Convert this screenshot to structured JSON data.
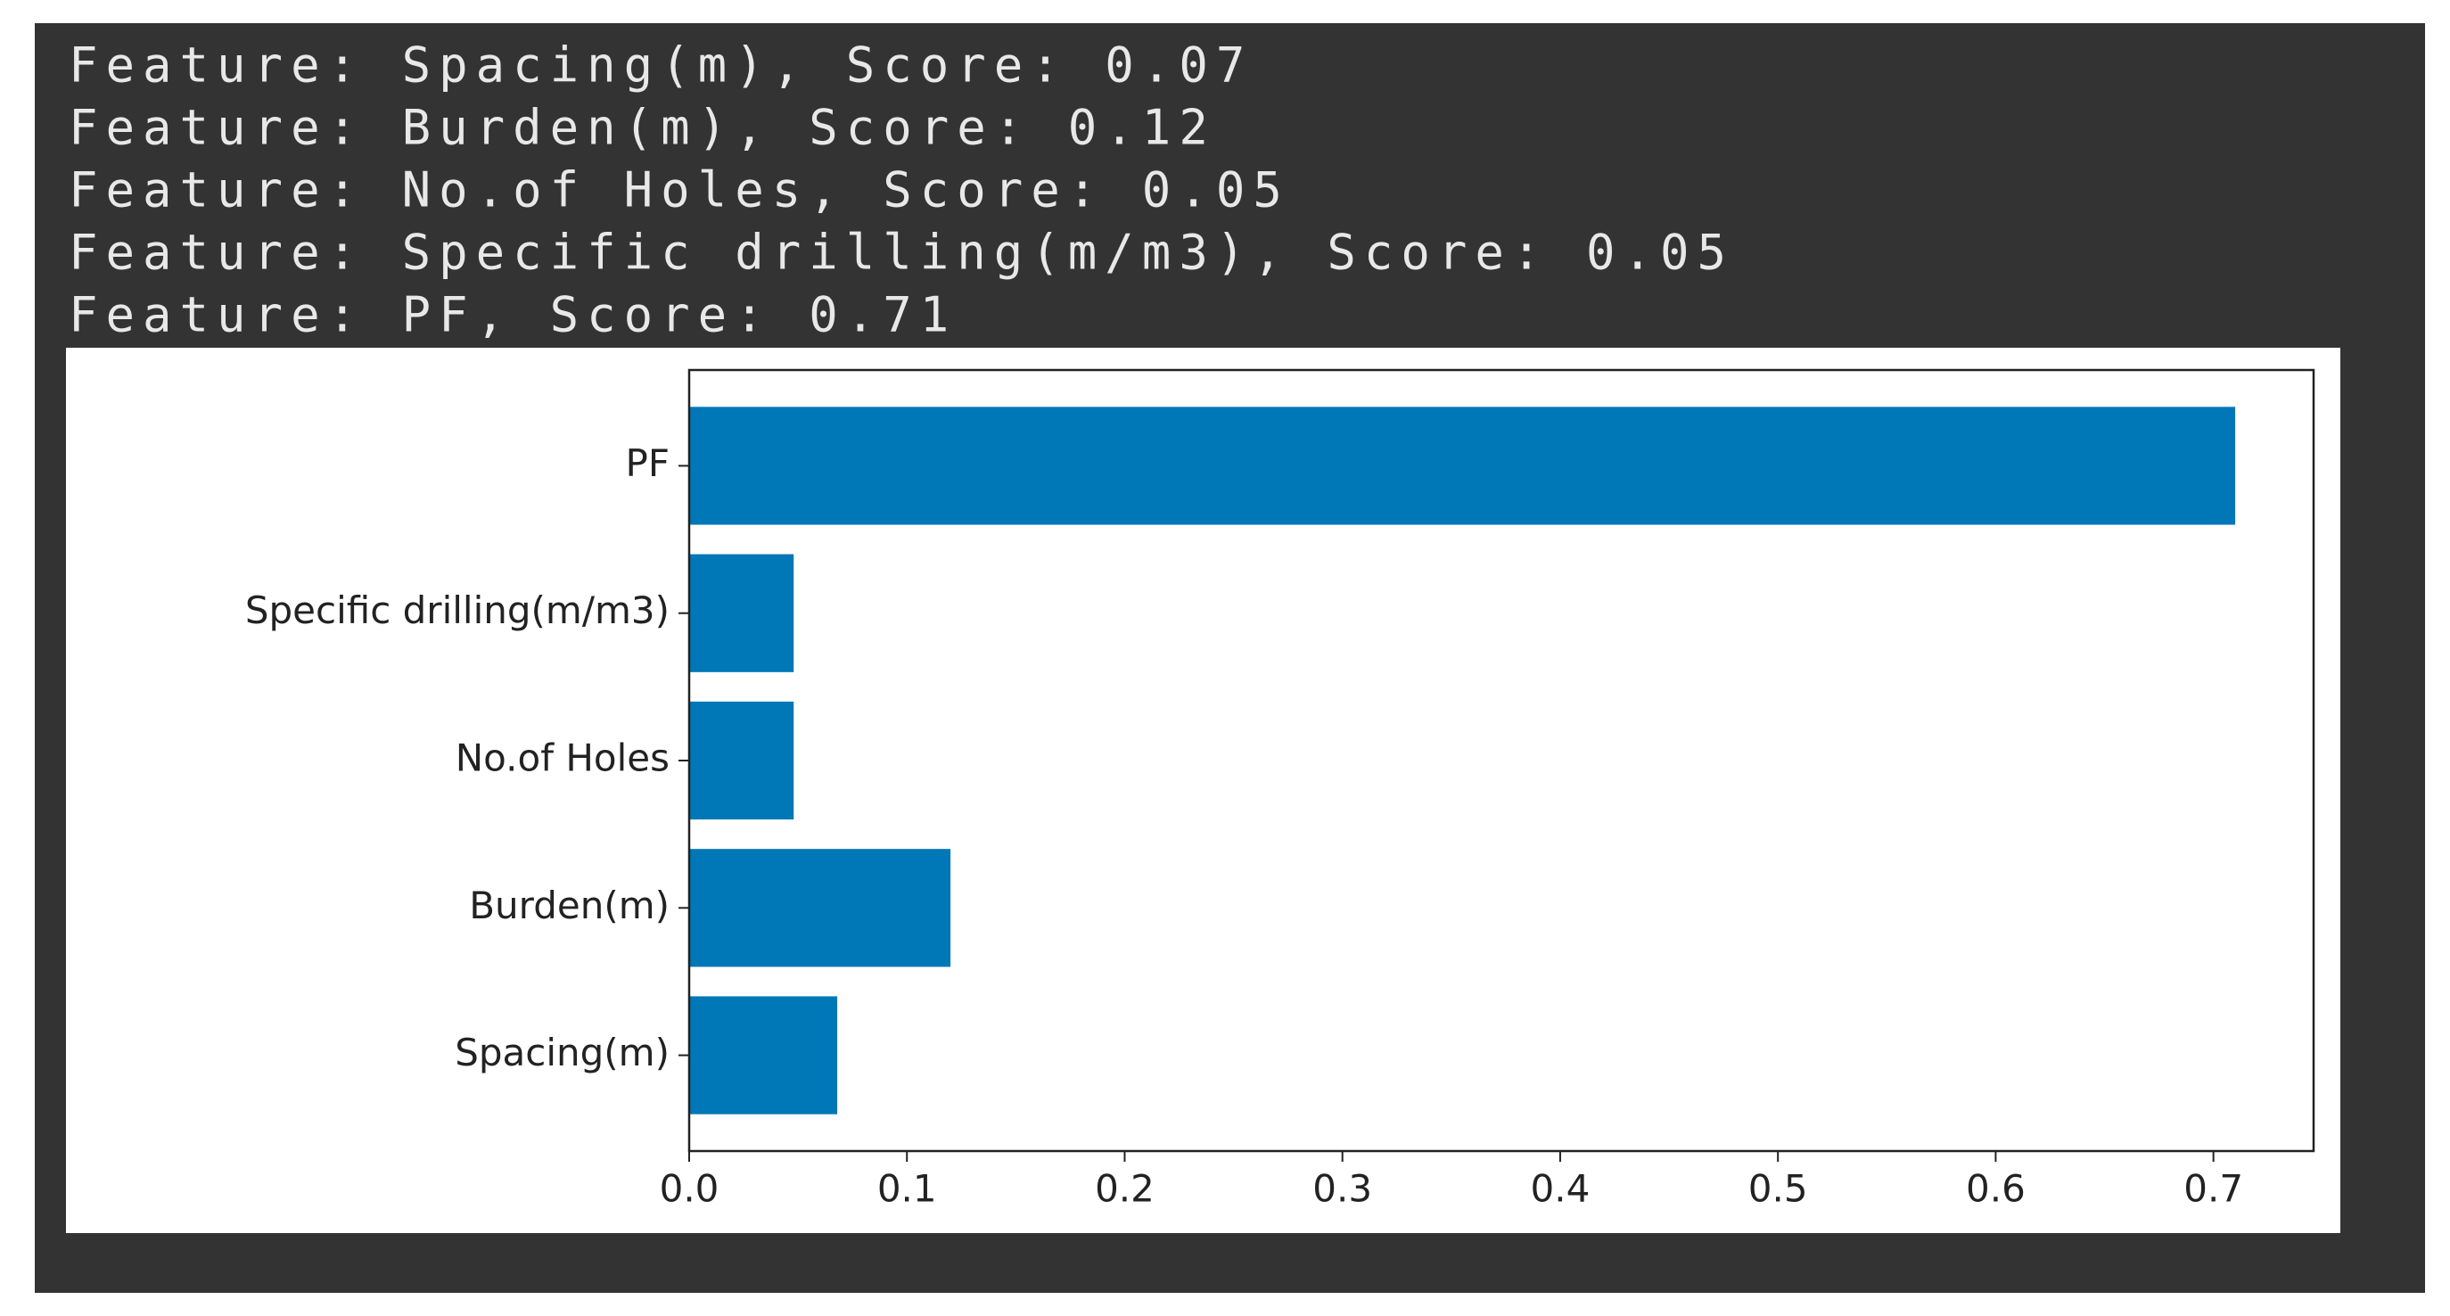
{
  "console": {
    "lines": [
      "Feature: Spacing(m), Score: 0.07",
      "Feature: Burden(m), Score: 0.12",
      "Feature: No.of Holes, Score: 0.05",
      "Feature: Specific drilling(m/m3), Score: 0.05",
      "Feature: PF, Score: 0.71"
    ]
  },
  "chart_data": {
    "type": "barh",
    "categories": [
      "Spacing(m)",
      "Burden(m)",
      "No.of Holes",
      "Specific drilling(m/m3)",
      "PF"
    ],
    "values": [
      0.068,
      0.12,
      0.048,
      0.048,
      0.71
    ],
    "color": "#0077b6",
    "xlim": [
      0,
      0.746
    ],
    "xticks": [
      {
        "value": 0,
        "label": "0.0"
      },
      0.1,
      0.2,
      0.3,
      0.4,
      0.5,
      0.6,
      0.7
    ]
  }
}
